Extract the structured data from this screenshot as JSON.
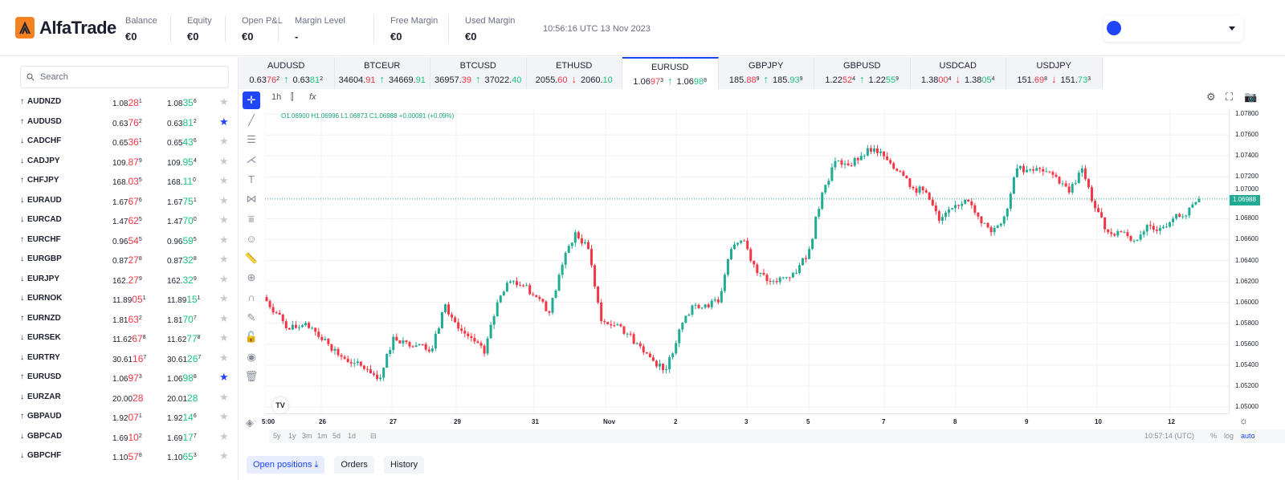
{
  "brand": {
    "name": "AlfaTrade",
    "color": "#f58220",
    "accent": "#1f45f5"
  },
  "header": {
    "stats": [
      {
        "label": "Balance",
        "value": "€0"
      },
      {
        "label": "Equity",
        "value": "€0"
      },
      {
        "label": "Open P&L",
        "value": "€0"
      },
      {
        "label": "Margin Level",
        "value": "-"
      },
      {
        "label": "Free Margin",
        "value": "€0"
      },
      {
        "label": "Used Margin",
        "value": "€0"
      }
    ],
    "clock": "10:56:16 UTC 13 Nov 2023"
  },
  "sidebar": {
    "search_placeholder": "Search",
    "rows": [
      {
        "dir": "↑",
        "sym": "AUDNZD",
        "bid": [
          "1.08",
          "28",
          "1"
        ],
        "ask": [
          "1.08",
          "35",
          "6"
        ],
        "fav": false
      },
      {
        "dir": "↑",
        "sym": "AUDUSD",
        "bid": [
          "0.63",
          "76",
          "2"
        ],
        "ask": [
          "0.63",
          "81",
          "2"
        ],
        "fav": true
      },
      {
        "dir": "↓",
        "sym": "CADCHF",
        "bid": [
          "0.65",
          "36",
          "1"
        ],
        "ask": [
          "0.65",
          "43",
          "6"
        ],
        "fav": false
      },
      {
        "dir": "↓",
        "sym": "CADJPY",
        "bid": [
          "109.",
          "87",
          "9"
        ],
        "ask": [
          "109.",
          "95",
          "4"
        ],
        "fav": false
      },
      {
        "dir": "↑",
        "sym": "CHFJPY",
        "bid": [
          "168.",
          "03",
          "5"
        ],
        "ask": [
          "168.",
          "11",
          "0"
        ],
        "fav": false
      },
      {
        "dir": "↓",
        "sym": "EURAUD",
        "bid": [
          "1.67",
          "67",
          "6"
        ],
        "ask": [
          "1.67",
          "75",
          "1"
        ],
        "fav": false
      },
      {
        "dir": "↓",
        "sym": "EURCAD",
        "bid": [
          "1.47",
          "62",
          "5"
        ],
        "ask": [
          "1.47",
          "70",
          "0"
        ],
        "fav": false
      },
      {
        "dir": "↑",
        "sym": "EURCHF",
        "bid": [
          "0.96",
          "54",
          "5"
        ],
        "ask": [
          "0.96",
          "59",
          "5"
        ],
        "fav": false
      },
      {
        "dir": "↓",
        "sym": "EURGBP",
        "bid": [
          "0.87",
          "27",
          "8"
        ],
        "ask": [
          "0.87",
          "32",
          "8"
        ],
        "fav": false
      },
      {
        "dir": "↓",
        "sym": "EURJPY",
        "bid": [
          "162.",
          "27",
          "9"
        ],
        "ask": [
          "162.",
          "32",
          "9"
        ],
        "fav": false
      },
      {
        "dir": "↓",
        "sym": "EURNOK",
        "bid": [
          "11.89",
          "05",
          "1"
        ],
        "ask": [
          "11.89",
          "15",
          "1"
        ],
        "fav": false
      },
      {
        "dir": "↑",
        "sym": "EURNZD",
        "bid": [
          "1.81",
          "63",
          "2"
        ],
        "ask": [
          "1.81",
          "70",
          "7"
        ],
        "fav": false
      },
      {
        "dir": "↓",
        "sym": "EURSEK",
        "bid": [
          "11.62",
          "67",
          "8"
        ],
        "ask": [
          "11.62",
          "77",
          "8"
        ],
        "fav": false
      },
      {
        "dir": "↓",
        "sym": "EURTRY",
        "bid": [
          "30.61",
          "16",
          "7"
        ],
        "ask": [
          "30.61",
          "26",
          "7"
        ],
        "fav": false
      },
      {
        "dir": "↑",
        "sym": "EURUSD",
        "bid": [
          "1.06",
          "97",
          "3"
        ],
        "ask": [
          "1.06",
          "98",
          "8"
        ],
        "fav": true
      },
      {
        "dir": "↓",
        "sym": "EURZAR",
        "bid": [
          "20.00",
          "28",
          ""
        ],
        "ask": [
          "20.01",
          "28",
          ""
        ],
        "fav": false
      },
      {
        "dir": "↑",
        "sym": "GBPAUD",
        "bid": [
          "1.92",
          "07",
          "1"
        ],
        "ask": [
          "1.92",
          "14",
          "6"
        ],
        "fav": false
      },
      {
        "dir": "↓",
        "sym": "GBPCAD",
        "bid": [
          "1.69",
          "10",
          "2"
        ],
        "ask": [
          "1.69",
          "17",
          "7"
        ],
        "fav": false
      },
      {
        "dir": "↓",
        "sym": "GBPCHF",
        "bid": [
          "1.10",
          "57",
          "8"
        ],
        "ask": [
          "1.10",
          "65",
          "3"
        ],
        "fav": false
      }
    ]
  },
  "tabs": [
    {
      "sym": "AUDUSD",
      "bid": [
        "0.63",
        "76",
        "2"
      ],
      "dir": "↑",
      "ask": [
        "0.63",
        "81",
        "2"
      ]
    },
    {
      "sym": "BTCEUR",
      "bid": [
        "34604.",
        "91",
        ""
      ],
      "dir": "↑",
      "ask": [
        "34669.",
        "91",
        ""
      ]
    },
    {
      "sym": "BTCUSD",
      "bid": [
        "36957.",
        "39",
        ""
      ],
      "dir": "↑",
      "ask": [
        "37022.",
        "40",
        ""
      ]
    },
    {
      "sym": "ETHUSD",
      "bid": [
        "2055.",
        "60",
        ""
      ],
      "dir": "↓",
      "ask": [
        "2060.",
        "10",
        ""
      ]
    },
    {
      "sym": "EURUSD",
      "bid": [
        "1.06",
        "97",
        "3"
      ],
      "dir": "↑",
      "ask": [
        "1.06",
        "98",
        "8"
      ],
      "active": true
    },
    {
      "sym": "GBPJPY",
      "bid": [
        "185.",
        "88",
        "9"
      ],
      "dir": "↑",
      "ask": [
        "185.",
        "93",
        "9"
      ]
    },
    {
      "sym": "GBPUSD",
      "bid": [
        "1.22",
        "52",
        "4"
      ],
      "dir": "↑",
      "ask": [
        "1.22",
        "55",
        "9"
      ]
    },
    {
      "sym": "USDCAD",
      "bid": [
        "1.38",
        "00",
        "4"
      ],
      "dir": "↓",
      "ask": [
        "1.38",
        "05",
        "4"
      ]
    },
    {
      "sym": "USDJPY",
      "bid": [
        "151.",
        "69",
        "8"
      ],
      "dir": "↓",
      "ask": [
        "151.",
        "73",
        "3"
      ]
    }
  ],
  "chart_toolbar": {
    "interval": "1h"
  },
  "ohlc": "O1.06900 H1.06996 L1.06873 C1.06988 +0.00091 (+0.09%)",
  "chart_data": {
    "type": "candlestick",
    "symbol": "EURUSD",
    "interval": "1h",
    "ylim": [
      1.05,
      1.078
    ],
    "y_ticks": [
      "1.07800",
      "1.07600",
      "1.07400",
      "1.07200",
      "1.07000",
      "1.06800",
      "1.06600",
      "1.06400",
      "1.06200",
      "1.06000",
      "1.05800",
      "1.05600",
      "1.05400",
      "1.05200",
      "1.05000"
    ],
    "x_ticks": [
      "5:00",
      "26",
      "27",
      "29",
      "31",
      "Nov",
      "2",
      "3",
      "5",
      "7",
      "8",
      "9",
      "10",
      "12"
    ],
    "last_price": "1.06988",
    "closes": [
      1.0605,
      1.059,
      1.0574,
      1.0578,
      1.0572,
      1.056,
      1.0548,
      1.0542,
      1.0536,
      1.0528,
      1.0567,
      1.0562,
      1.056,
      1.0556,
      1.0598,
      1.0575,
      1.0566,
      1.0551,
      1.06,
      1.062,
      1.0616,
      1.0605,
      1.059,
      1.0636,
      1.0667,
      1.0651,
      1.0582,
      1.0578,
      1.057,
      1.0558,
      1.0544,
      1.0536,
      1.0574,
      1.0597,
      1.0598,
      1.06,
      1.0651,
      1.0659,
      1.0628,
      1.062,
      1.0624,
      1.0628,
      1.0651,
      1.0705,
      1.0735,
      1.0731,
      1.074,
      1.0747,
      1.0736,
      1.0725,
      1.0709,
      1.0705,
      1.0678,
      1.069,
      1.0698,
      1.0682,
      1.0667,
      1.0682,
      1.0728,
      1.0727,
      1.0725,
      1.072,
      1.0705,
      1.0728,
      1.069,
      1.0667,
      1.0667,
      1.0659,
      1.0674,
      1.0671,
      1.068,
      1.0683,
      1.06988
    ],
    "up_color": "#22ab94",
    "down_color": "#f23645",
    "grid": true
  },
  "range_bar": {
    "ranges": [
      "5y",
      "1y",
      "3m",
      "1m",
      "5d",
      "1d"
    ],
    "time": "10:57:14 (UTC)",
    "pct": "%",
    "log": "log",
    "auto": "auto"
  },
  "bottom_tabs": [
    "Open positions",
    "Orders",
    "History"
  ]
}
